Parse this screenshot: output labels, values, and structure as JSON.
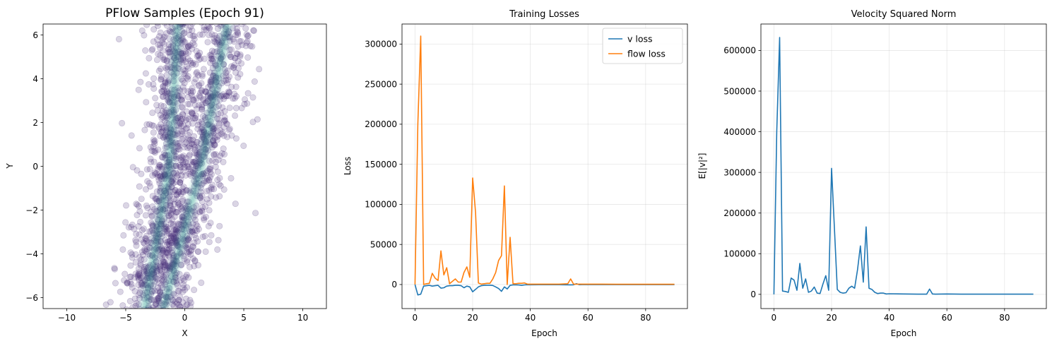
{
  "chart_data": [
    {
      "type": "scatter",
      "title": "PFlow Samples (Epoch 91)",
      "xlabel": "X",
      "ylabel": "Y",
      "xlim": [
        -12,
        12
      ],
      "ylim": [
        -6.5,
        6.5
      ],
      "xticks": [
        -10,
        -5,
        0,
        5,
        10
      ],
      "yticks": [
        -6,
        -4,
        -2,
        0,
        2,
        4,
        6
      ],
      "point_color": "#472c7a",
      "density_color": "#2a9d8c",
      "point_alpha": 0.2,
      "point_count_note_hidden": true,
      "structure": {
        "description_hidden": true,
        "bands": [
          {
            "x_at_y": [
              [
                -6.5,
                -3.4
              ],
              [
                0,
                -1.3
              ],
              [
                6.5,
                -0.6
              ]
            ],
            "spread": 1.4,
            "share": 0.5
          },
          {
            "x_at_y": [
              [
                -6.5,
                -1.8
              ],
              [
                0,
                1.4
              ],
              [
                6.5,
                3.6
              ]
            ],
            "spread": 1.5,
            "share": 0.5
          }
        ]
      }
    },
    {
      "type": "line",
      "title": "Training Losses",
      "xlabel": "Epoch",
      "ylabel": "Loss",
      "xlim": [
        -4.5,
        94.5
      ],
      "ylim": [
        -30000,
        325000
      ],
      "xticks": [
        0,
        20,
        40,
        60,
        80
      ],
      "yticks": [
        0,
        50000,
        100000,
        150000,
        200000,
        250000,
        300000
      ],
      "grid": true,
      "legend": "top-right",
      "series": [
        {
          "name": "v loss",
          "color": "#1f77b4",
          "x": [
            0,
            1,
            2,
            3,
            4,
            5,
            6,
            7,
            8,
            9,
            10,
            11,
            12,
            13,
            14,
            15,
            16,
            17,
            18,
            19,
            20,
            21,
            22,
            23,
            24,
            25,
            26,
            27,
            28,
            29,
            30,
            31,
            32,
            33,
            34,
            35,
            36,
            37,
            38,
            39,
            40,
            45,
            50,
            54,
            55,
            56,
            57,
            58,
            60,
            65,
            70,
            75,
            80,
            85,
            90
          ],
          "y": [
            0,
            -13000,
            -12000,
            -2000,
            -1500,
            -1000,
            -2000,
            -1500,
            -1000,
            -4500,
            -4000,
            -2000,
            -1500,
            -1500,
            -1000,
            -1000,
            -1500,
            -4000,
            -2000,
            -3000,
            -9000,
            -6000,
            -3000,
            -1500,
            -1000,
            -800,
            -800,
            -1200,
            -3000,
            -5000,
            -8500,
            -3000,
            -5500,
            -1000,
            -500,
            -500,
            -600,
            -1000,
            -500,
            -200,
            -300,
            -200,
            -200,
            -400,
            -300,
            1000,
            -200,
            -100,
            -100,
            -100,
            -100,
            -100,
            -100,
            -100,
            -100
          ]
        },
        {
          "name": "flow loss",
          "color": "#ff7f0e",
          "x": [
            0,
            1,
            2,
            3,
            4,
            5,
            6,
            7,
            8,
            9,
            10,
            11,
            12,
            13,
            14,
            15,
            16,
            17,
            18,
            19,
            20,
            21,
            22,
            23,
            24,
            25,
            26,
            27,
            28,
            29,
            30,
            31,
            32,
            33,
            34,
            35,
            36,
            37,
            38,
            39,
            40,
            45,
            50,
            53,
            54,
            55,
            56,
            58,
            60,
            65,
            70,
            75,
            80,
            85,
            90
          ],
          "y": [
            0,
            200000,
            310000,
            0,
            1000,
            1500,
            14000,
            8000,
            5000,
            42000,
            12000,
            21000,
            1000,
            4000,
            7000,
            3000,
            3000,
            15000,
            22000,
            9000,
            133000,
            90000,
            2000,
            500,
            1000,
            1500,
            1500,
            7000,
            15000,
            30000,
            36000,
            123000,
            0,
            59000,
            1000,
            1000,
            1500,
            1500,
            2000,
            500,
            500,
            500,
            500,
            1000,
            7000,
            500,
            500,
            500,
            500,
            500,
            300,
            300,
            300,
            300,
            300
          ]
        }
      ]
    },
    {
      "type": "line",
      "title": "Velocity Squared Norm",
      "xlabel": "Epoch",
      "ylabel": "E[|v|²]",
      "xlim": [
        -4.5,
        94.5
      ],
      "ylim": [
        -35000,
        665000
      ],
      "xticks": [
        0,
        20,
        40,
        60,
        80
      ],
      "yticks": [
        0,
        100000,
        200000,
        300000,
        400000,
        500000,
        600000
      ],
      "grid": true,
      "series": [
        {
          "color": "#1f77b4",
          "x": [
            0,
            1,
            2,
            3,
            4,
            5,
            6,
            7,
            8,
            9,
            10,
            11,
            12,
            13,
            14,
            15,
            16,
            17,
            18,
            19,
            20,
            21,
            22,
            23,
            24,
            25,
            26,
            27,
            28,
            29,
            30,
            31,
            32,
            33,
            34,
            35,
            36,
            37,
            38,
            39,
            40,
            45,
            50,
            53,
            54,
            55,
            56,
            60,
            65,
            70,
            75,
            80,
            85,
            90
          ],
          "y": [
            0,
            400000,
            632000,
            8000,
            7000,
            5000,
            40000,
            35000,
            10000,
            76000,
            15000,
            38000,
            5000,
            8000,
            18000,
            3000,
            2000,
            25000,
            46000,
            10000,
            310000,
            160000,
            12000,
            5000,
            3000,
            4000,
            15000,
            20000,
            15000,
            60000,
            119000,
            30000,
            166000,
            15000,
            12000,
            5000,
            2000,
            3000,
            3000,
            1000,
            1500,
            1000,
            500,
            500,
            13000,
            1000,
            500,
            1000,
            500,
            500,
            500,
            500,
            500,
            500
          ]
        }
      ]
    }
  ]
}
